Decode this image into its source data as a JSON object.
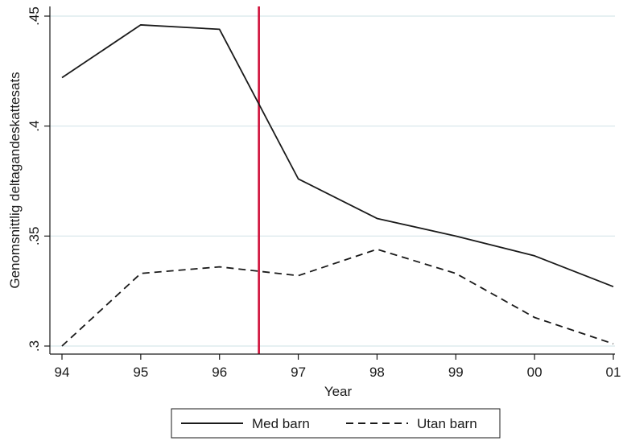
{
  "chart_data": {
    "type": "line",
    "xlabel": "Year",
    "ylabel": "Genomsnittlig deltagandeskattesats",
    "categories": [
      "94",
      "95",
      "96",
      "97",
      "98",
      "99",
      "00",
      "01"
    ],
    "ylim": [
      0.3,
      0.45
    ],
    "yticks": [
      0.3,
      0.35,
      0.4,
      0.45
    ],
    "ytick_labels": [
      ".3",
      ".35",
      ".4",
      ".45"
    ],
    "grid": true,
    "series": [
      {
        "name": "Med barn",
        "style": "solid",
        "color": "#1a1a1a",
        "values": [
          0.422,
          0.446,
          0.444,
          0.376,
          0.358,
          0.35,
          0.341,
          0.327
        ]
      },
      {
        "name": "Utan barn",
        "style": "dashed",
        "color": "#1a1a1a",
        "values": [
          0.3,
          0.333,
          0.336,
          0.332,
          0.344,
          0.333,
          0.313,
          0.301
        ]
      }
    ],
    "vertical_line": {
      "x": 96.5,
      "color": "#d0103a"
    },
    "legend_position": "bottom"
  }
}
